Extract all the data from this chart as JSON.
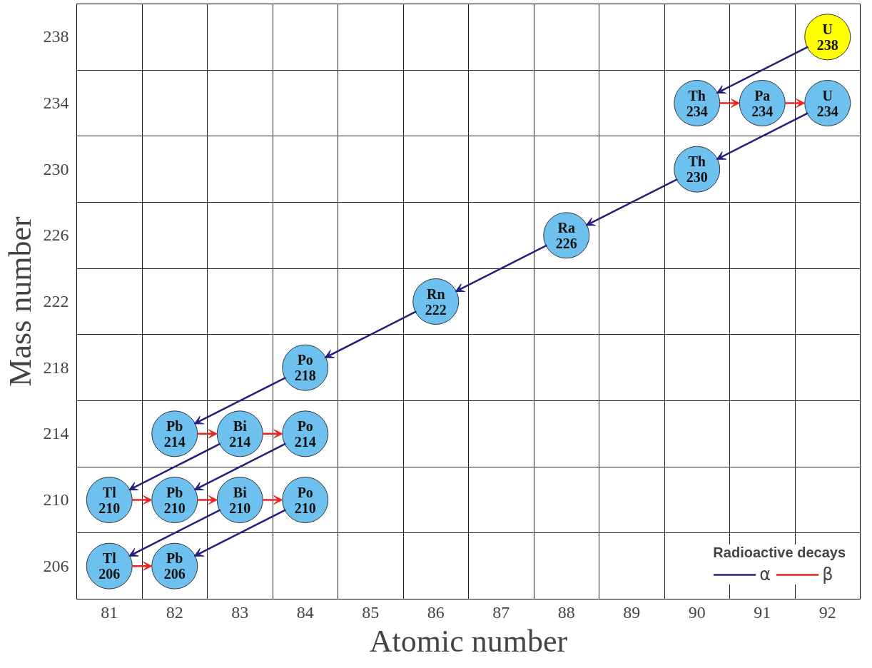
{
  "chart_data": {
    "type": "scatter",
    "xlabel": "Atomic number",
    "ylabel": "Mass number",
    "xlim": [
      80.5,
      92.5
    ],
    "xticks": [
      81,
      82,
      83,
      84,
      85,
      86,
      87,
      88,
      89,
      90,
      91,
      92
    ],
    "ylim": [
      204,
      240
    ],
    "yticks": [
      206,
      210,
      214,
      218,
      222,
      226,
      230,
      234,
      238
    ],
    "grid": true,
    "legend": "bottom right",
    "legend_title": "Radioactive decays",
    "series": [
      {
        "type": "scatter",
        "marker": "circle",
        "x": [
          92,
          90,
          91,
          92,
          90,
          88,
          86,
          84,
          82,
          83,
          84,
          81,
          82,
          83,
          84,
          81,
          82
        ],
        "values": [
          238,
          234,
          234,
          234,
          230,
          226,
          222,
          218,
          214,
          214,
          214,
          210,
          210,
          210,
          210,
          206,
          206
        ],
        "colors": [
          "#ffff00",
          "#6ec1ee",
          "#6ec1ee",
          "#6ec1ee",
          "#6ec1ee",
          "#6ec1ee",
          "#6ec1ee",
          "#6ec1ee",
          "#6ec1ee",
          "#6ec1ee",
          "#6ec1ee",
          "#6ec1ee",
          "#6ec1ee",
          "#6ec1ee",
          "#6ec1ee",
          "#6ec1ee",
          "#6ec1ee"
        ],
        "value_labels": [
          "U\n238",
          "Th\n234",
          "Pa\n234",
          "U\n234",
          "Th\n230",
          "Ra\n226",
          "Rn\n222",
          "Po\n218",
          "Pb\n214",
          "Bi\n214",
          "Po\n214",
          "Tl\n210",
          "Pb\n210",
          "Bi\n210",
          "Po\n210",
          "Tl\n206",
          "Pb\n206"
        ]
      },
      {
        "type": "line",
        "name": "α",
        "color": "#231f7a"
      },
      {
        "type": "line",
        "name": "β",
        "color": "#e8251f"
      }
    ]
  }
}
